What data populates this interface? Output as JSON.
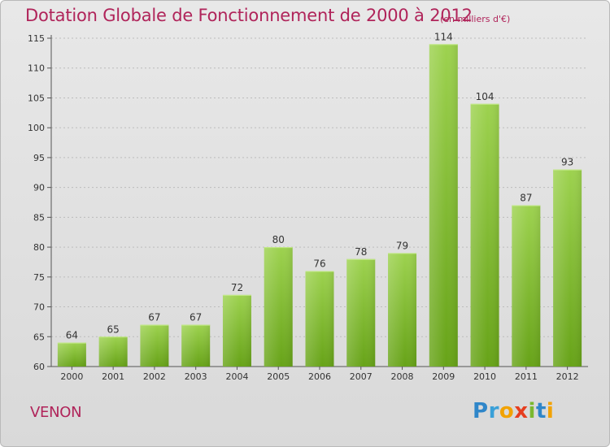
{
  "header": {
    "title": "Dotation Globale de Fonctionnement de 2000 à 2012",
    "subtitle": "(en milliers d'€)"
  },
  "commune": "VENON",
  "logo": {
    "text": "Proxiti",
    "colors": {
      "p": "#2f86c9",
      "r": "#3aa0d8",
      "o": "#f2a200",
      "x": "#e63e1f",
      "i": "#7ab82f",
      "t": "#2f86c9",
      "i2": "#f2a200"
    }
  },
  "colors": {
    "title": "#b0245a",
    "bar_top": "#9dd24f",
    "bar_bottom": "#67a318",
    "grid": "#bcbcbc"
  },
  "chart_data": {
    "type": "bar",
    "title": "Dotation Globale de Fonctionnement de 2000 à 2012",
    "subtitle": "(en milliers d'€)",
    "categories": [
      "2000",
      "2001",
      "2002",
      "2003",
      "2004",
      "2005",
      "2006",
      "2007",
      "2008",
      "2009",
      "2010",
      "2011",
      "2012"
    ],
    "values": [
      64,
      65,
      67,
      67,
      72,
      80,
      76,
      78,
      79,
      114,
      104,
      87,
      93
    ],
    "xlabel": "",
    "ylabel": "",
    "ylim": [
      60,
      115
    ],
    "yticks": [
      60,
      65,
      70,
      75,
      80,
      85,
      90,
      95,
      100,
      105,
      110,
      115
    ],
    "grid": true,
    "data_labels": true
  }
}
